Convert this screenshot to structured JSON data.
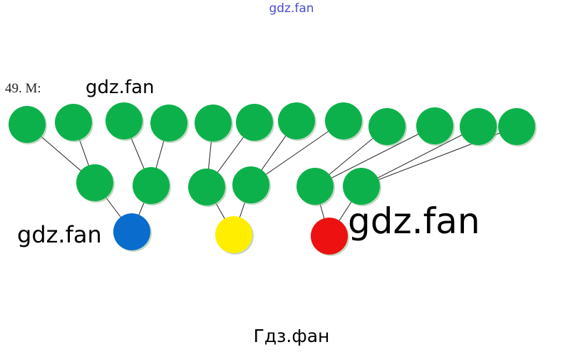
{
  "watermark_top": "gdz.fan",
  "problem_label": "49. M:",
  "watermarks": [
    "gdz.fan",
    "gdz.fan",
    "gdz.fan"
  ],
  "watermark_bottom": "Гдз.фан",
  "colors": {
    "green": "#0db14b",
    "blue": "#0a6ccc",
    "yellow": "#ffee00",
    "red": "#ee1111",
    "line": "#222222",
    "watermark_top": "#4a4ad0"
  },
  "diagram": {
    "top_row": [
      "green",
      "green",
      "green",
      "green",
      "green",
      "green",
      "green",
      "green",
      "green",
      "green",
      "green",
      "green"
    ],
    "middle_row": [
      "green",
      "green",
      "green",
      "green",
      "green",
      "green"
    ],
    "bottom_row": [
      "blue",
      "yellow",
      "red"
    ]
  }
}
